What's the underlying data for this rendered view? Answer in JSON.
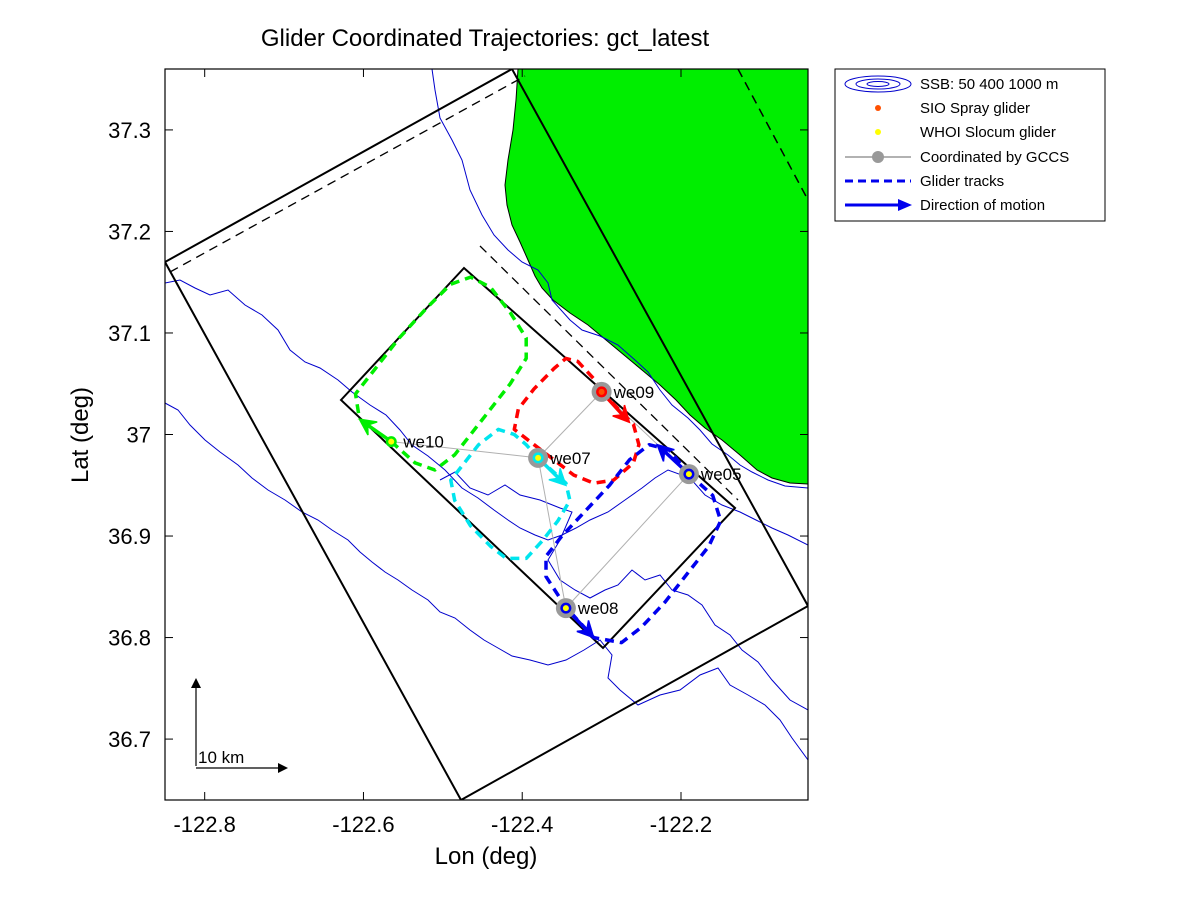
{
  "chart_data": {
    "type": "map",
    "title": "Glider Coordinated Trajectories: gct_latest",
    "xlabel": "Lon (deg)",
    "ylabel": "Lat (deg)",
    "xlim": [
      -122.85,
      -122.04
    ],
    "ylim": [
      36.64,
      37.36
    ],
    "xticks": [
      -122.8,
      -122.6,
      -122.4,
      -122.2
    ],
    "xtick_labels": [
      "-122.8",
      "-122.6",
      "-122.4",
      "-122.2"
    ],
    "yticks": [
      36.7,
      36.8,
      36.9,
      37.0,
      37.1,
      37.2,
      37.3
    ],
    "ytick_labels": [
      "36.7",
      "36.8",
      "36.9",
      "37",
      "37.1",
      "37.2",
      "37.3"
    ],
    "scale_label": "10 km",
    "colors": {
      "land": "#00ee00",
      "bathymetry": "#0000cc",
      "we09": "#ff0000",
      "we07": "#00e5ee",
      "we10": "#00ee00",
      "we05": "#0000ee",
      "we08": "#0000ee",
      "coord_marker": "#999999",
      "sio_marker": "#ff5000",
      "whoi_marker": "#ffff00"
    },
    "gliders": [
      {
        "name": "we09",
        "lon": -122.3,
        "lat": 37.042,
        "type": "SIO Spray glider",
        "arrow_to": [
          -122.265,
          37.012
        ],
        "track": [
          [
            -122.3,
            37.042
          ],
          [
            -122.26,
            37.01
          ],
          [
            -122.253,
            36.99
          ],
          [
            -122.26,
            36.972
          ],
          [
            -122.285,
            36.955
          ],
          [
            -122.31,
            36.952
          ],
          [
            -122.335,
            36.96
          ],
          [
            -122.36,
            36.975
          ],
          [
            -122.385,
            36.99
          ],
          [
            -122.41,
            37.005
          ],
          [
            -122.405,
            37.025
          ],
          [
            -122.385,
            37.045
          ],
          [
            -122.36,
            37.065
          ],
          [
            -122.345,
            37.075
          ],
          [
            -122.33,
            37.072
          ],
          [
            -122.31,
            37.055
          ],
          [
            -122.3,
            37.042
          ]
        ]
      },
      {
        "name": "we07",
        "lon": -122.38,
        "lat": 36.977,
        "type": "WHOI Slocum glider",
        "arrow_to": [
          -122.345,
          36.95
        ],
        "track": [
          [
            -122.38,
            36.977
          ],
          [
            -122.345,
            36.952
          ],
          [
            -122.34,
            36.935
          ],
          [
            -122.355,
            36.915
          ],
          [
            -122.375,
            36.895
          ],
          [
            -122.395,
            36.878
          ],
          [
            -122.42,
            36.878
          ],
          [
            -122.44,
            36.89
          ],
          [
            -122.465,
            36.91
          ],
          [
            -122.485,
            36.935
          ],
          [
            -122.49,
            36.955
          ],
          [
            -122.475,
            36.97
          ],
          [
            -122.455,
            36.99
          ],
          [
            -122.43,
            37.005
          ],
          [
            -122.41,
            37.0
          ],
          [
            -122.395,
            36.99
          ],
          [
            -122.38,
            36.977
          ]
        ]
      },
      {
        "name": "we10",
        "lon": -122.565,
        "lat": 36.993,
        "type": "WHOI Slocum glider",
        "arrow_to": [
          -122.605,
          37.015
        ],
        "track": [
          [
            -122.565,
            36.993
          ],
          [
            -122.535,
            36.972
          ],
          [
            -122.51,
            36.965
          ],
          [
            -122.485,
            36.98
          ],
          [
            -122.465,
            37.0
          ],
          [
            -122.44,
            37.025
          ],
          [
            -122.415,
            37.05
          ],
          [
            -122.395,
            37.075
          ],
          [
            -122.395,
            37.095
          ],
          [
            -122.415,
            37.12
          ],
          [
            -122.44,
            37.145
          ],
          [
            -122.465,
            37.155
          ],
          [
            -122.49,
            37.148
          ],
          [
            -122.52,
            37.125
          ],
          [
            -122.555,
            37.095
          ],
          [
            -122.585,
            37.065
          ],
          [
            -122.61,
            37.04
          ],
          [
            -122.605,
            37.015
          ]
        ]
      },
      {
        "name": "we05",
        "lon": -122.19,
        "lat": 36.961,
        "type": "WHOI Slocum glider",
        "arrow_to": [
          -122.23,
          36.99
        ],
        "track": [
          [
            -122.19,
            36.961
          ],
          [
            -122.16,
            36.94
          ],
          [
            -122.15,
            36.915
          ],
          [
            -122.165,
            36.89
          ],
          [
            -122.19,
            36.865
          ],
          [
            -122.22,
            36.835
          ],
          [
            -122.25,
            36.81
          ],
          [
            -122.275,
            36.795
          ],
          [
            -122.31,
            36.8
          ],
          [
            -122.345,
            36.83
          ],
          [
            -122.37,
            36.86
          ],
          [
            -122.37,
            36.88
          ],
          [
            -122.35,
            36.9
          ],
          [
            -122.32,
            36.925
          ],
          [
            -122.29,
            36.95
          ],
          [
            -122.265,
            36.975
          ],
          [
            -122.24,
            36.99
          ],
          [
            -122.215,
            36.985
          ],
          [
            -122.19,
            36.961
          ]
        ]
      },
      {
        "name": "we08",
        "lon": -122.345,
        "lat": 36.829,
        "type": "WHOI Slocum glider",
        "arrow_to": [
          -122.31,
          36.8
        ],
        "track": []
      }
    ],
    "legend": {
      "placement": "outside-right",
      "entries": [
        {
          "label": "SSB: 50   400  1000 m",
          "symbol": "contour"
        },
        {
          "label": "SIO Spray glider",
          "symbol": "dot"
        },
        {
          "label": "WHOI Slocum glider",
          "symbol": "dot"
        },
        {
          "label": "Coordinated by GCCS",
          "symbol": "line-marker"
        },
        {
          "label": "Glider tracks",
          "symbol": "dashed"
        },
        {
          "label": "Direction of motion",
          "symbol": "arrow"
        }
      ]
    }
  }
}
